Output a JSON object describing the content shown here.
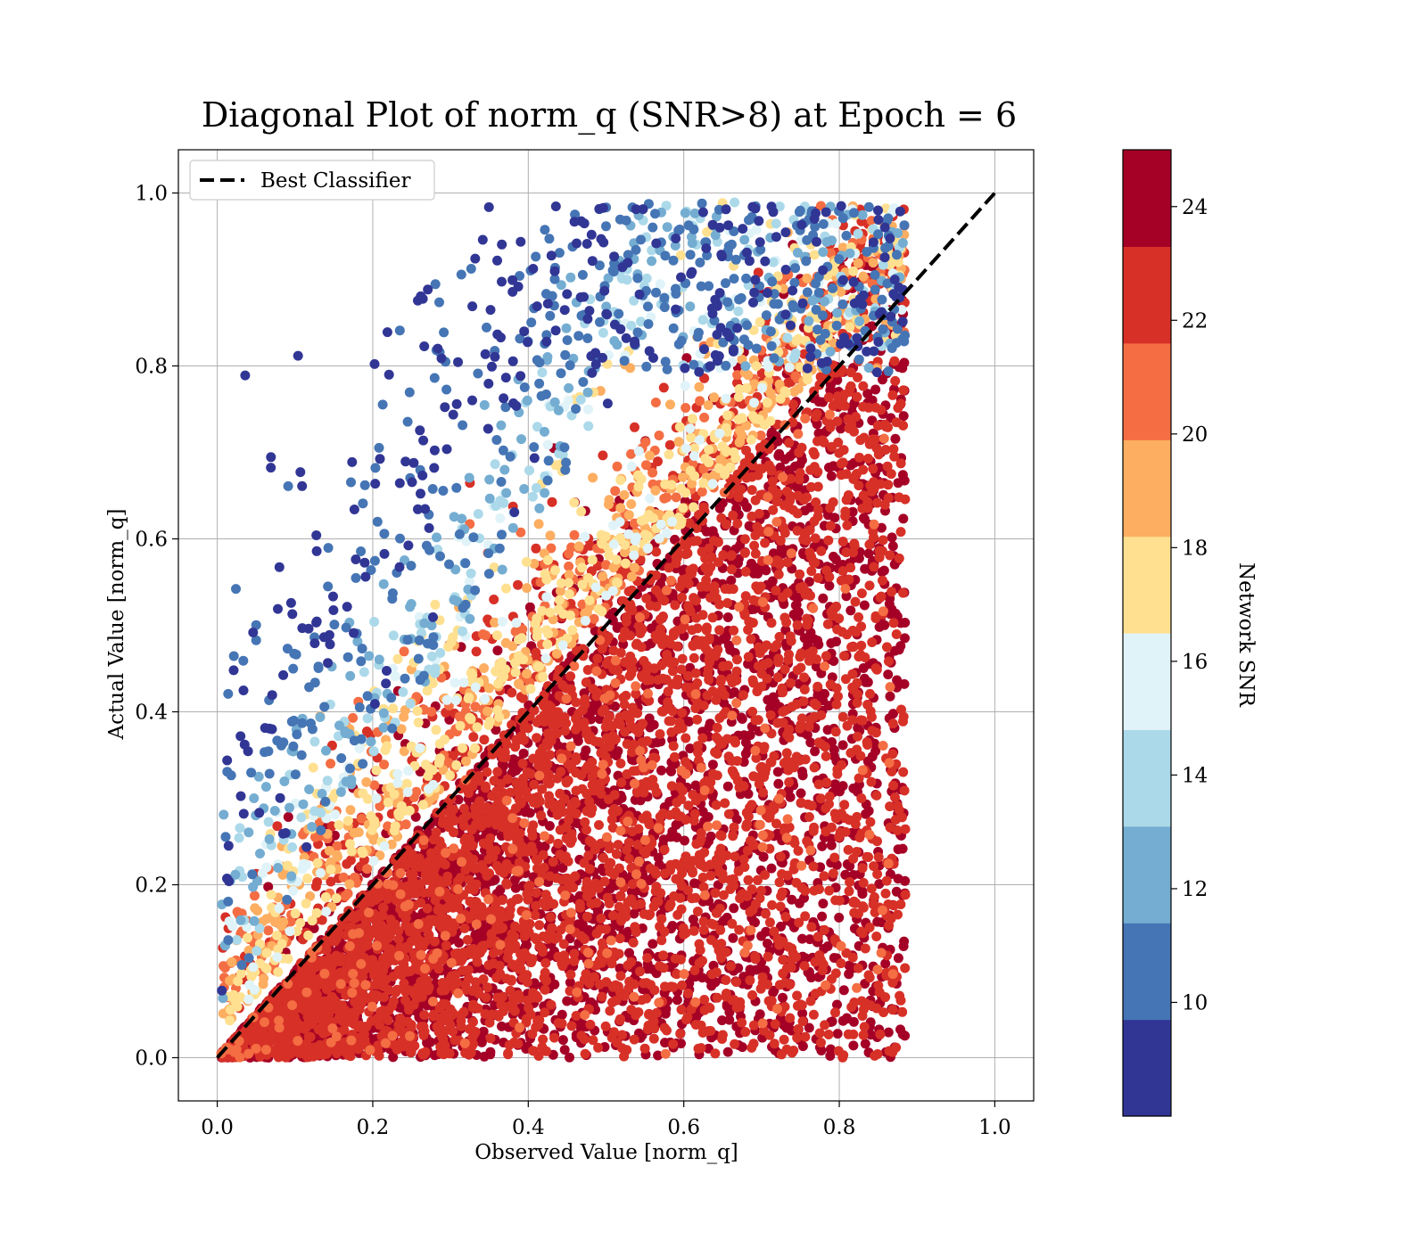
{
  "chart_data": {
    "type": "scatter",
    "title": "Diagonal Plot of norm_q (SNR>8) at Epoch = 6",
    "xlabel": "Observed Value [norm_q]",
    "ylabel": "Actual Value [norm_q]",
    "xlim": [
      -0.05,
      1.05
    ],
    "ylim": [
      -0.05,
      1.05
    ],
    "x_ticks": [
      "0.0",
      "0.2",
      "0.4",
      "0.6",
      "0.8",
      "1.0"
    ],
    "y_ticks": [
      "0.0",
      "0.2",
      "0.4",
      "0.6",
      "0.8",
      "1.0"
    ],
    "grid": true,
    "legend": {
      "placement": "top-left",
      "entries": [
        {
          "label": "Best Classifier",
          "style": "dashed",
          "color": "#000000"
        }
      ]
    },
    "reference_line": {
      "name": "Best Classifier",
      "points": [
        [
          0,
          0
        ],
        [
          1,
          1
        ]
      ],
      "style": "dashed"
    },
    "colorbar": {
      "label": "Network SNR",
      "range": [
        8,
        25
      ],
      "ticks": [
        "10",
        "12",
        "14",
        "16",
        "18",
        "20",
        "22",
        "24"
      ],
      "colors": [
        "#313695",
        "#4575b4",
        "#74add1",
        "#abd9e9",
        "#e0f3f8",
        "#fee090",
        "#fdae61",
        "#f46d43",
        "#d73027",
        "#a50026"
      ]
    },
    "points_summary": {
      "description_note": "dense point cloud; high SNR points cluster below and along diagonal, low SNR points above diagonal",
      "x_range": [
        0.0,
        0.92
      ],
      "y_range": [
        0.0,
        0.99
      ]
    }
  }
}
